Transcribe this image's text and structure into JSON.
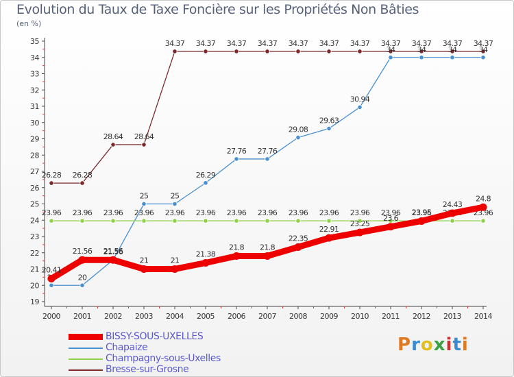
{
  "chart_data": {
    "type": "line",
    "title": "Evolution du Taux de Taxe Foncière sur les Propriétés Non Bâties",
    "unit_label": "(en %)",
    "xlabel": "",
    "ylabel": "(en %)",
    "x": [
      "2000",
      "2001",
      "2002",
      "2003",
      "2004",
      "2005",
      "2006",
      "2007",
      "2008",
      "2009",
      "2010",
      "2011",
      "2012",
      "2013",
      "2014"
    ],
    "yticks": [
      19,
      20,
      21,
      22,
      23,
      24,
      25,
      26,
      27,
      28,
      29,
      30,
      31,
      32,
      33,
      34,
      35
    ],
    "ylim": [
      19,
      35
    ],
    "grid": false,
    "legend_position": "bottom-left",
    "series": [
      {
        "name": "Bresse-sur-Grosne",
        "color": "#7a2a2a",
        "values": [
          26.28,
          26.28,
          28.64,
          28.64,
          34.37,
          34.37,
          34.37,
          34.37,
          34.37,
          34.37,
          34.37,
          34.37,
          34.37,
          34.37,
          34.37
        ],
        "labels": [
          "26.28",
          "26.28",
          "28.64",
          "28.64",
          "34.37",
          "34.37",
          "34.37",
          "34.37",
          "34.37",
          "34.37",
          "34.37",
          "34.37",
          "34.37",
          "34.37",
          "34.37"
        ]
      },
      {
        "name": "Chapaize",
        "color": "#4a8fd0",
        "values": [
          20,
          20,
          21.56,
          25,
          25,
          26.29,
          27.76,
          27.76,
          29.08,
          29.63,
          30.94,
          34,
          34,
          34,
          34
        ],
        "labels": [
          "20",
          "20",
          "21.56",
          "25",
          "25",
          "26.29",
          "27.76",
          "27.76",
          "29.08",
          "29.63",
          "30.94",
          "34",
          "34",
          "34",
          "34"
        ]
      },
      {
        "name": "Champagny-sous-Uxelles",
        "color": "#8fd24a",
        "values": [
          23.96,
          23.96,
          23.96,
          23.96,
          23.96,
          23.96,
          23.96,
          23.96,
          23.96,
          23.96,
          23.96,
          23.96,
          23.96,
          23.96,
          23.96
        ],
        "labels": [
          "23.96",
          "23.96",
          "23.96",
          "23.96",
          "23.96",
          "23.96",
          "23.96",
          "23.96",
          "23.96",
          "23.96",
          "23.96",
          "23.96",
          "23.96",
          "23.96",
          "23.96"
        ]
      },
      {
        "name": "BISSY-SOUS-UXELLES",
        "color": "#ee0000",
        "values": [
          20.41,
          21.56,
          21.56,
          21,
          21,
          21.38,
          21.8,
          21.8,
          22.35,
          22.91,
          23.25,
          23.6,
          23.95,
          24.43,
          24.8
        ],
        "labels": [
          "20.41",
          "21.56",
          "21.56",
          "21",
          "21",
          "21.38",
          "21.8",
          "21.8",
          "22.35",
          "22.91",
          "23.25",
          "23.6",
          "23.95",
          "24.43",
          "24.8"
        ]
      }
    ]
  },
  "legend": [
    {
      "label": "BISSY-SOUS-UXELLES",
      "color": "#ee0000"
    },
    {
      "label": "Chapaize",
      "color": "#4a8fd0"
    },
    {
      "label": "Champagny-sous-Uxelles",
      "color": "#8fd24a"
    },
    {
      "label": "Bresse-sur-Grosne",
      "color": "#7a2a2a"
    }
  ],
  "logo": {
    "text": "Proxiti",
    "colors": [
      "#e07a20",
      "#3a8ad0",
      "#e0c020",
      "#3aa040",
      "#d03030",
      "#3a8ad0",
      "#e07a20"
    ]
  }
}
